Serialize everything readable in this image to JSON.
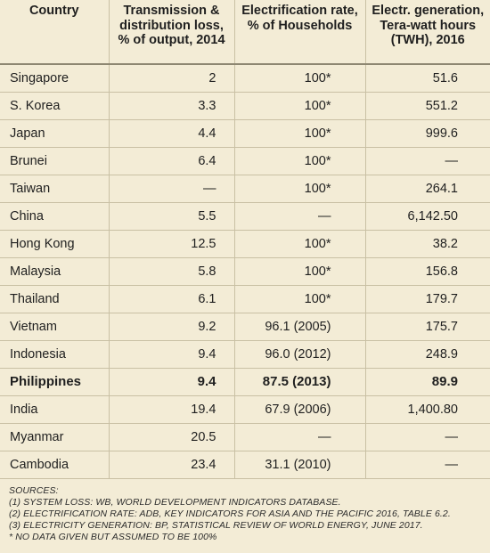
{
  "table": {
    "headers": [
      "Country",
      "Transmission & distribution loss, % of output, 2014",
      "Electrification rate, % of Households",
      "Electr. generation, Tera-watt hours (TWH), 2016"
    ],
    "rows": [
      {
        "country": "Singapore",
        "loss": "2",
        "electrification": "100*",
        "generation": "51.6",
        "bold": false
      },
      {
        "country": "S. Korea",
        "loss": "3.3",
        "electrification": "100*",
        "generation": "551.2",
        "bold": false
      },
      {
        "country": "Japan",
        "loss": "4.4",
        "electrification": "100*",
        "generation": "999.6",
        "bold": false
      },
      {
        "country": "Brunei",
        "loss": "6.4",
        "electrification": "100*",
        "generation": "—",
        "bold": false
      },
      {
        "country": "Taiwan",
        "loss": "—",
        "electrification": "100*",
        "generation": "264.1",
        "bold": false
      },
      {
        "country": "China",
        "loss": "5.5",
        "electrification": "—",
        "generation": "6,142.50",
        "bold": false
      },
      {
        "country": "Hong Kong",
        "loss": "12.5",
        "electrification": "100*",
        "generation": "38.2",
        "bold": false
      },
      {
        "country": "Malaysia",
        "loss": "5.8",
        "electrification": "100*",
        "generation": "156.8",
        "bold": false
      },
      {
        "country": "Thailand",
        "loss": "6.1",
        "electrification": "100*",
        "generation": "179.7",
        "bold": false
      },
      {
        "country": "Vietnam",
        "loss": "9.2",
        "electrification": "96.1 (2005)",
        "generation": "175.7",
        "bold": false
      },
      {
        "country": "Indonesia",
        "loss": "9.4",
        "electrification": "96.0 (2012)",
        "generation": "248.9",
        "bold": false
      },
      {
        "country": "Philippines",
        "loss": "9.4",
        "electrification": "87.5 (2013)",
        "generation": "89.9",
        "bold": true
      },
      {
        "country": "India",
        "loss": "19.4",
        "electrification": "67.9 (2006)",
        "generation": "1,400.80",
        "bold": false
      },
      {
        "country": "Myanmar",
        "loss": "20.5",
        "electrification": "—",
        "generation": "—",
        "bold": false
      },
      {
        "country": "Cambodia",
        "loss": "23.4",
        "electrification": "31.1 (2010)",
        "generation": "—",
        "bold": false
      }
    ]
  },
  "sources": {
    "title": "SOURCES:",
    "lines": [
      "(1) SYSTEM LOSS: WB, WORLD DEVELOPMENT INDICATORS DATABASE.",
      "(2) ELECTRIFICATION RATE: ADB, KEY INDICATORS FOR ASIA AND THE PACIFIC 2016, TABLE 6.2.",
      "(3) ELECTRICITY GENERATION: BP, STATISTICAL REVIEW OF WORLD ENERGY, JUNE 2017.",
      "* NO DATA GIVEN BUT ASSUMED TO BE 100%"
    ]
  },
  "colors": {
    "background": "#f3ecd6",
    "rule": "#c9c0a4",
    "header_rule": "#8d8772",
    "text": "#1f1f1f"
  }
}
